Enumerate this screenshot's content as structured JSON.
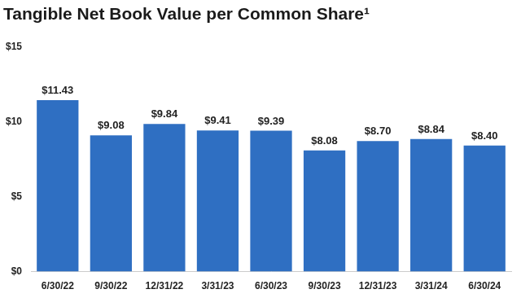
{
  "chart_data": {
    "type": "bar",
    "title": "Tangible Net Book Value per Common Share¹",
    "categories": [
      "6/30/22",
      "9/30/22",
      "12/31/22",
      "3/31/23",
      "6/30/23",
      "9/30/23",
      "12/31/23",
      "3/31/24",
      "6/30/24"
    ],
    "values": [
      11.43,
      9.08,
      9.84,
      9.41,
      9.39,
      8.08,
      8.7,
      8.84,
      8.4
    ],
    "value_labels": [
      "$11.43",
      "$9.08",
      "$9.84",
      "$9.41",
      "$9.39",
      "$8.08",
      "$8.70",
      "$8.84",
      "$8.40"
    ],
    "data_labels": true,
    "color": "#2f6fc2",
    "ylim": [
      0,
      15
    ],
    "yticks": [
      {
        "value": 0,
        "label": "$0"
      },
      {
        "value": 5,
        "label": "$5"
      },
      {
        "value": 10,
        "label": "$10"
      },
      {
        "value": 15,
        "label": "$15"
      }
    ],
    "grid": false
  }
}
